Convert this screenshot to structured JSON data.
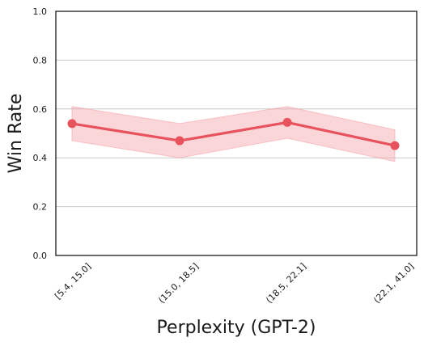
{
  "chart_data": {
    "type": "line",
    "title": "",
    "xlabel": "Perplexity (GPT-2)",
    "ylabel": "Win Rate",
    "categories": [
      "[5.4, 15.0]",
      "(15.0, 18.5]",
      "(18.5, 22.1]",
      "(22.1, 41.0]"
    ],
    "series": [
      {
        "values": [
          0.54,
          0.47,
          0.545,
          0.45
        ],
        "lower": [
          0.47,
          0.4,
          0.48,
          0.385
        ],
        "upper": [
          0.61,
          0.54,
          0.61,
          0.515
        ],
        "color": "#e8525c",
        "band_color": "#f5a3a9"
      }
    ],
    "ylim": [
      0.0,
      1.0
    ],
    "yticks": [
      "0.0",
      "0.2",
      "0.4",
      "0.6",
      "0.8",
      "1.0"
    ],
    "grid": true
  }
}
